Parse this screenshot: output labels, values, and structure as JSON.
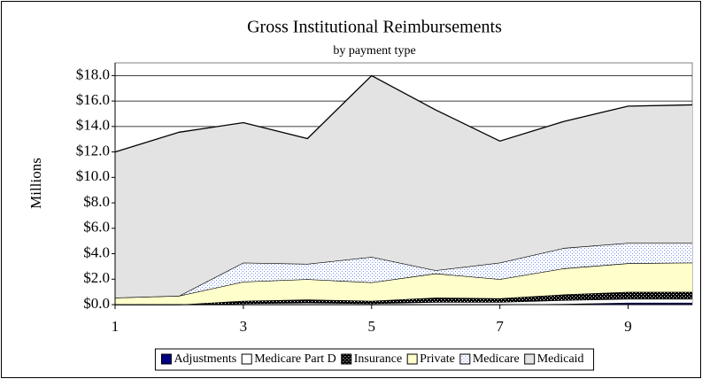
{
  "chart_data": {
    "type": "stacked-area",
    "title": "Gross Institutional Reimbursements",
    "subtitle": "by payment type",
    "y_label": "Millions",
    "x": [
      1,
      2,
      3,
      4,
      5,
      6,
      7,
      8,
      9,
      10
    ],
    "xlim": [
      1,
      10
    ],
    "xticks": [
      1,
      3,
      5,
      7,
      9
    ],
    "ylim": [
      0,
      19
    ],
    "yticks": [
      {
        "value": 0,
        "label": "$0.0"
      },
      {
        "value": 2,
        "label": "$2.0"
      },
      {
        "value": 4,
        "label": "$4.0"
      },
      {
        "value": 6,
        "label": "$6.0"
      },
      {
        "value": 8,
        "label": "$8.0"
      },
      {
        "value": 10,
        "label": "$10.0"
      },
      {
        "value": 12,
        "label": "$12.0"
      },
      {
        "value": 14,
        "label": "$14.0"
      },
      {
        "value": 16,
        "label": "$16.0"
      },
      {
        "value": 18,
        "label": "$18.0"
      }
    ],
    "grid": true,
    "legend": "bottom",
    "series": [
      {
        "name": "Adjustments",
        "color": "#000080",
        "pattern": "solid",
        "values": [
          0,
          0,
          0,
          0,
          0,
          0,
          0,
          0.05,
          0.15,
          0.15
        ]
      },
      {
        "name": "Medicare Part D",
        "color": "#ffffff",
        "pattern": "solid",
        "values": [
          0,
          0,
          0.1,
          0.15,
          0.1,
          0.2,
          0.2,
          0.3,
          0.3,
          0.3
        ]
      },
      {
        "name": "Insurance",
        "color": "#000000",
        "pattern": "dots",
        "values": [
          0,
          0,
          0.2,
          0.25,
          0.2,
          0.35,
          0.3,
          0.45,
          0.55,
          0.55
        ]
      },
      {
        "name": "Private",
        "color": "#ffffcc",
        "pattern": "solid",
        "values": [
          0.55,
          0.7,
          1.5,
          1.6,
          1.45,
          1.9,
          1.5,
          2.05,
          2.25,
          2.3
        ]
      },
      {
        "name": "Medicare",
        "color": "#6f8fe8",
        "pattern": "dots",
        "values": [
          0,
          0,
          1.5,
          1.2,
          2.0,
          0.25,
          1.3,
          1.6,
          1.6,
          1.55
        ]
      },
      {
        "name": "Medicaid",
        "color": "#e3e3e3",
        "pattern": "solid",
        "values": [
          11.45,
          12.85,
          11.0,
          9.85,
          14.25,
          12.6,
          9.55,
          9.95,
          10.75,
          10.85
        ]
      }
    ]
  }
}
